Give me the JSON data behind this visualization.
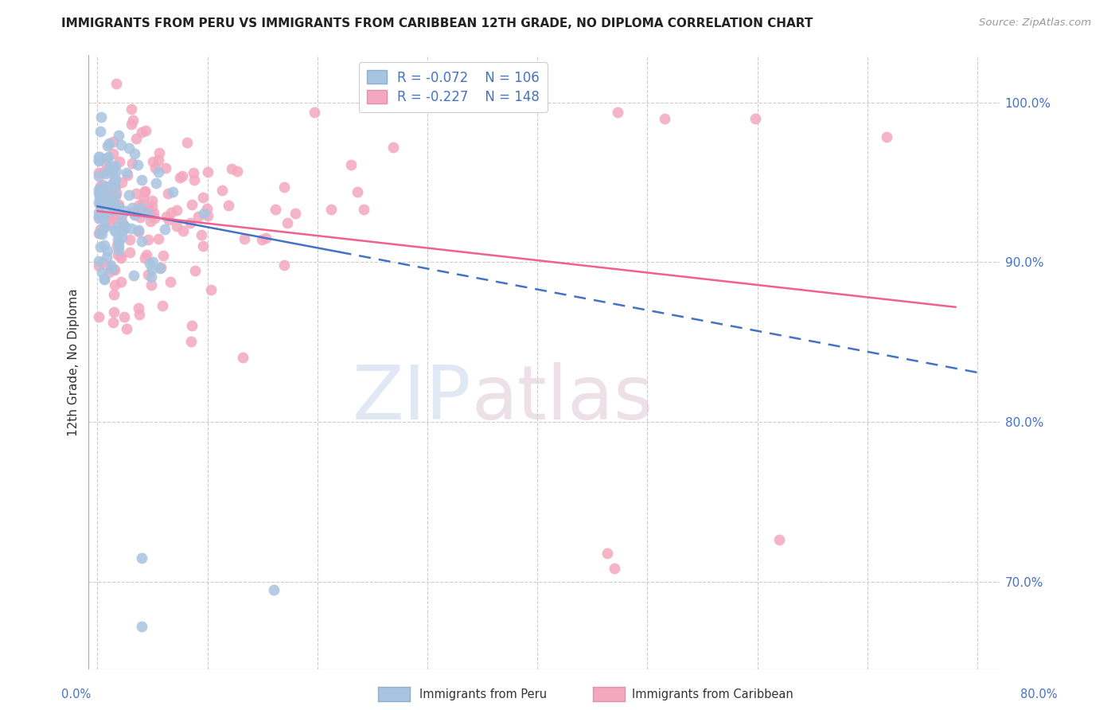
{
  "title": "IMMIGRANTS FROM PERU VS IMMIGRANTS FROM CARIBBEAN 12TH GRADE, NO DIPLOMA CORRELATION CHART",
  "source": "Source: ZipAtlas.com",
  "xlabel_bottom_left": "0.0%",
  "xlabel_bottom_right": "80.0%",
  "ylabel": "12th Grade, No Diploma",
  "y_tick_labels": [
    "100.0%",
    "90.0%",
    "80.0%",
    "70.0%"
  ],
  "y_tick_values": [
    1.0,
    0.9,
    0.8,
    0.7
  ],
  "legend_r_peru": "-0.072",
  "legend_n_peru": "106",
  "legend_r_carib": "-0.227",
  "legend_n_carib": "148",
  "color_peru": "#a8c4e0",
  "color_carib": "#f4a8c0",
  "color_line_peru": "#4472c4",
  "color_line_carib": "#f06090",
  "background_color": "#ffffff",
  "xlim": [
    -0.008,
    0.82
  ],
  "ylim": [
    0.645,
    1.03
  ]
}
